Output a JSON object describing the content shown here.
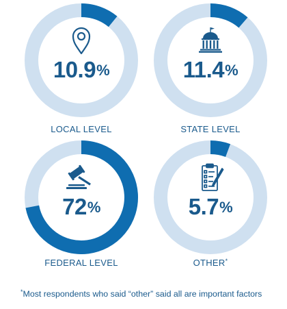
{
  "chart_data": {
    "type": "donut",
    "value_unit": "%",
    "colors": {
      "filled": "#0f6db0",
      "track": "#cfe0f0",
      "text": "#1a5a8c"
    },
    "items": [
      {
        "value": 10.9,
        "value_text": "10.9",
        "pct_sign": "%",
        "label": "LOCAL LEVEL",
        "label_note": "",
        "icon": "location-pin-icon"
      },
      {
        "value": 11.4,
        "value_text": "11.4",
        "pct_sign": "%",
        "label": "STATE LEVEL",
        "label_note": "",
        "icon": "capitol-building-icon"
      },
      {
        "value": 72,
        "value_text": "72",
        "pct_sign": "%",
        "label": "FEDERAL LEVEL",
        "label_note": "",
        "icon": "gavel-icon"
      },
      {
        "value": 5.7,
        "value_text": "5.7",
        "pct_sign": "%",
        "label": "OTHER",
        "label_note": "*",
        "icon": "clipboard-checklist-icon"
      }
    ]
  },
  "footnote": {
    "marker": "*",
    "text": "Most respondents who said “other” said all are important factors"
  }
}
